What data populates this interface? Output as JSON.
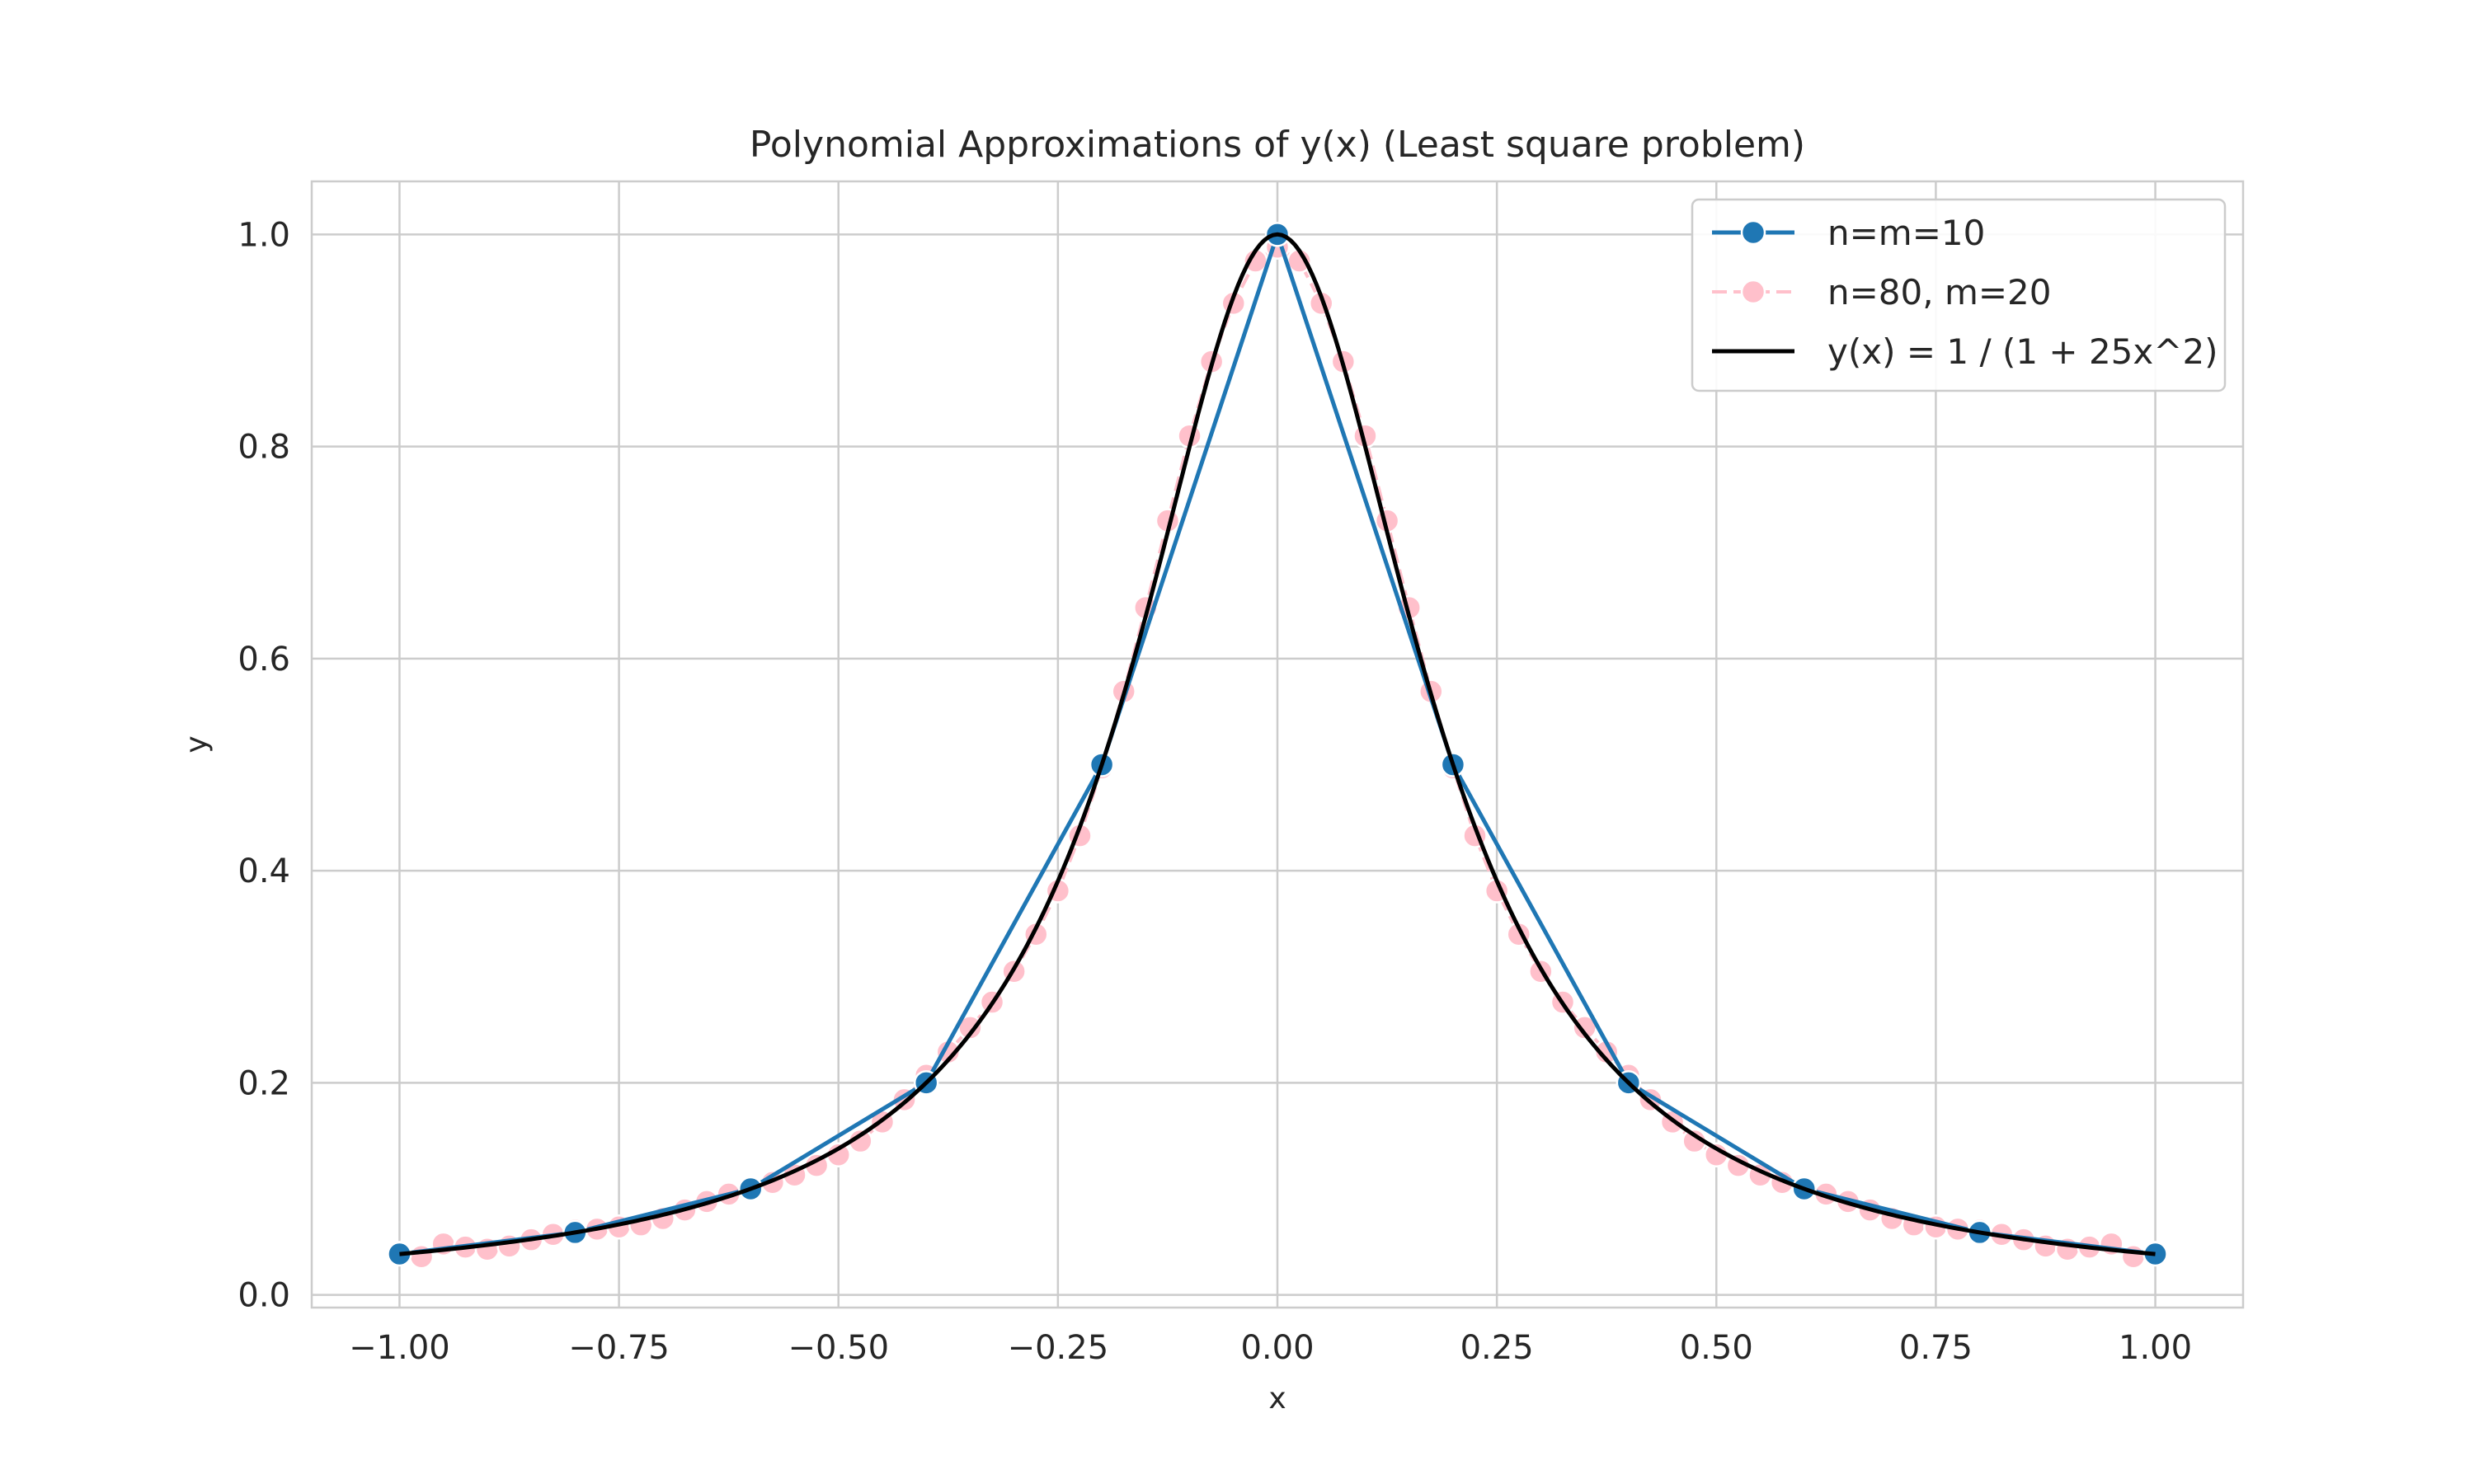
{
  "chart_data": {
    "type": "line",
    "title": "Polynomial Approximations of y(x) (Least square problem)",
    "xlabel": "x",
    "ylabel": "y",
    "xlim": [
      -1.1,
      1.1
    ],
    "ylim": [
      -0.012,
      1.05
    ],
    "xticks": [
      -1.0,
      -0.75,
      -0.5,
      -0.25,
      0.0,
      0.25,
      0.5,
      0.75,
      1.0
    ],
    "xtick_labels": [
      "−1.00",
      "−0.75",
      "−0.50",
      "−0.25",
      "0.00",
      "0.25",
      "0.50",
      "0.75",
      "1.00"
    ],
    "yticks": [
      0.0,
      0.2,
      0.4,
      0.6,
      0.8,
      1.0
    ],
    "ytick_labels": [
      "0.0",
      "0.2",
      "0.4",
      "0.6",
      "0.8",
      "1.0"
    ],
    "grid": true,
    "legend_position": "top-right",
    "series": [
      {
        "name": "n=m=10",
        "color": "#1f77b4",
        "style": "line-markers",
        "x": [
          -1.0,
          -0.8,
          -0.6,
          -0.4,
          -0.2,
          0.0,
          0.2,
          0.4,
          0.6,
          0.8,
          1.0
        ],
        "y": [
          0.0385,
          0.0588,
          0.1,
          0.2,
          0.5,
          1.0,
          0.5,
          0.2,
          0.1,
          0.0588,
          0.0385
        ]
      },
      {
        "name": "n=80, m=20",
        "color": "#ffc0cb",
        "style": "dashed-markers",
        "x": [
          -1.0,
          -0.975,
          -0.95,
          -0.925,
          -0.9,
          -0.875,
          -0.85,
          -0.825,
          -0.8,
          -0.775,
          -0.75,
          -0.725,
          -0.7,
          -0.675,
          -0.65,
          -0.625,
          -0.6,
          -0.575,
          -0.55,
          -0.525,
          -0.5,
          -0.475,
          -0.45,
          -0.425,
          -0.4,
          -0.375,
          -0.35,
          -0.325,
          -0.3,
          -0.275,
          -0.25,
          -0.225,
          -0.2,
          -0.175,
          -0.15,
          -0.125,
          -0.1,
          -0.075,
          -0.05,
          -0.025,
          0.0,
          0.025,
          0.05,
          0.075,
          0.1,
          0.125,
          0.15,
          0.175,
          0.2,
          0.225,
          0.25,
          0.275,
          0.3,
          0.325,
          0.35,
          0.375,
          0.4,
          0.425,
          0.45,
          0.475,
          0.5,
          0.525,
          0.55,
          0.575,
          0.6,
          0.625,
          0.65,
          0.675,
          0.7,
          0.725,
          0.75,
          0.775,
          0.8,
          0.825,
          0.85,
          0.875,
          0.9,
          0.925,
          0.95,
          0.975,
          1.0
        ],
        "y": [
          0.039,
          0.036,
          0.048,
          0.045,
          0.043,
          0.046,
          0.052,
          0.057,
          0.061,
          0.062,
          0.064,
          0.066,
          0.072,
          0.08,
          0.088,
          0.095,
          0.1,
          0.106,
          0.113,
          0.122,
          0.132,
          0.145,
          0.163,
          0.184,
          0.207,
          0.229,
          0.252,
          0.276,
          0.305,
          0.34,
          0.381,
          0.433,
          0.497,
          0.569,
          0.648,
          0.73,
          0.81,
          0.88,
          0.935,
          0.975,
          0.988,
          0.975,
          0.935,
          0.88,
          0.81,
          0.73,
          0.648,
          0.569,
          0.497,
          0.433,
          0.381,
          0.34,
          0.305,
          0.276,
          0.252,
          0.229,
          0.207,
          0.184,
          0.163,
          0.145,
          0.132,
          0.122,
          0.113,
          0.106,
          0.1,
          0.095,
          0.088,
          0.08,
          0.072,
          0.066,
          0.064,
          0.062,
          0.061,
          0.057,
          0.052,
          0.046,
          0.043,
          0.045,
          0.048,
          0.036,
          0.039
        ]
      },
      {
        "name": "y(x) = 1 / (1 + 25x^2)",
        "color": "#000000",
        "style": "line",
        "function": "1/(1+25x^2)",
        "x_range": [
          -1.0,
          1.0
        ]
      }
    ]
  }
}
